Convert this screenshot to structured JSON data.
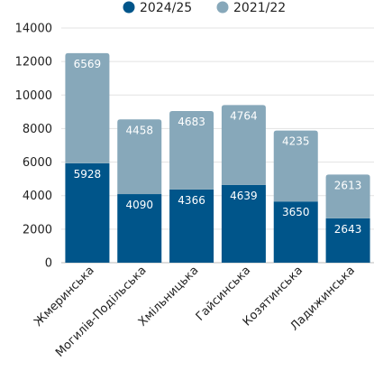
{
  "chart_data": {
    "type": "bar",
    "stacked": true,
    "categories": [
      "Жмеринська",
      "Могилів-Подільська",
      "Хмільницька",
      "Гайсинська",
      "Козятинська",
      "Ладижинська"
    ],
    "series": [
      {
        "name": "2024/25",
        "color": "#00558a",
        "values": [
          5928,
          4090,
          4366,
          4639,
          3650,
          2643
        ]
      },
      {
        "name": "2021/22",
        "color": "#87a8ba",
        "values": [
          6569,
          4458,
          4683,
          4764,
          4235,
          2613
        ]
      }
    ],
    "yticks": [
      "0",
      "2000",
      "4000",
      "6000",
      "8000",
      "10000",
      "12000",
      "14000"
    ],
    "ylim": [
      0,
      14000
    ],
    "legend_position": "top",
    "grid": true,
    "title": "",
    "xlabel": "",
    "ylabel": ""
  }
}
